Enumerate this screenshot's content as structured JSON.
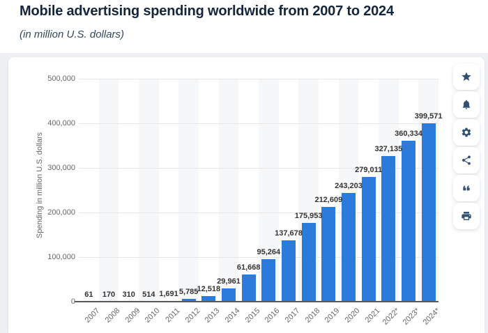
{
  "header": {
    "title": "Mobile advertising spending worldwide from 2007 to 2024",
    "subtitle": "(in million U.S. dollars)"
  },
  "chart_data": {
    "type": "bar",
    "title": "Mobile advertising spending worldwide from 2007 to 2024",
    "subtitle": "(in million U.S. dollars)",
    "categories": [
      "2007",
      "2008",
      "2009",
      "2010",
      "2011",
      "2012",
      "2013",
      "2014",
      "2015",
      "2016",
      "2017",
      "2018",
      "2019",
      "2020",
      "2021",
      "2022*",
      "2023*",
      "2024*"
    ],
    "values": [
      61,
      170,
      310,
      514,
      1691,
      5785,
      12518,
      29961,
      61668,
      95264,
      137678,
      175953,
      212609,
      243203,
      279011,
      327135,
      360334,
      399571
    ],
    "display_values": [
      "61",
      "170",
      "310",
      "514",
      "1,691",
      "5,785",
      "12,518",
      "29,961",
      "61,668",
      "95,264",
      "137,678",
      "175,953",
      "212,609",
      "243,203",
      "279,011",
      "327,135",
      "360,334",
      "399,571"
    ],
    "xlabel": "",
    "ylabel": "Spending in million U.S. dollars",
    "ylim": [
      0,
      500000
    ],
    "yticks": [
      "500,000",
      "400,000",
      "300,000",
      "200,000",
      "100,000",
      "0"
    ],
    "grid": true,
    "alternating_column_bands": true,
    "legend": "none",
    "bar_color": "#2b7bdc"
  },
  "toolbar": {
    "buttons": [
      {
        "id": "favorite",
        "icon": "star-icon"
      },
      {
        "id": "notifications",
        "icon": "bell-icon"
      },
      {
        "id": "settings",
        "icon": "gear-icon"
      },
      {
        "id": "share",
        "icon": "share-icon"
      },
      {
        "id": "cite",
        "icon": "quote-icon"
      },
      {
        "id": "print",
        "icon": "printer-icon"
      }
    ]
  },
  "colors": {
    "bar": "#2b7bdc",
    "title_text": "#15263c",
    "subtitle_text": "#32465c",
    "axis_text": "#666666",
    "data_label": "#333333",
    "gridline": "#e7e7e7",
    "axis_line": "#59595b",
    "band": "#f6f7f8",
    "page_bg": "#eef0f3",
    "card_bg": "#ffffff",
    "icon": "#32506f"
  }
}
